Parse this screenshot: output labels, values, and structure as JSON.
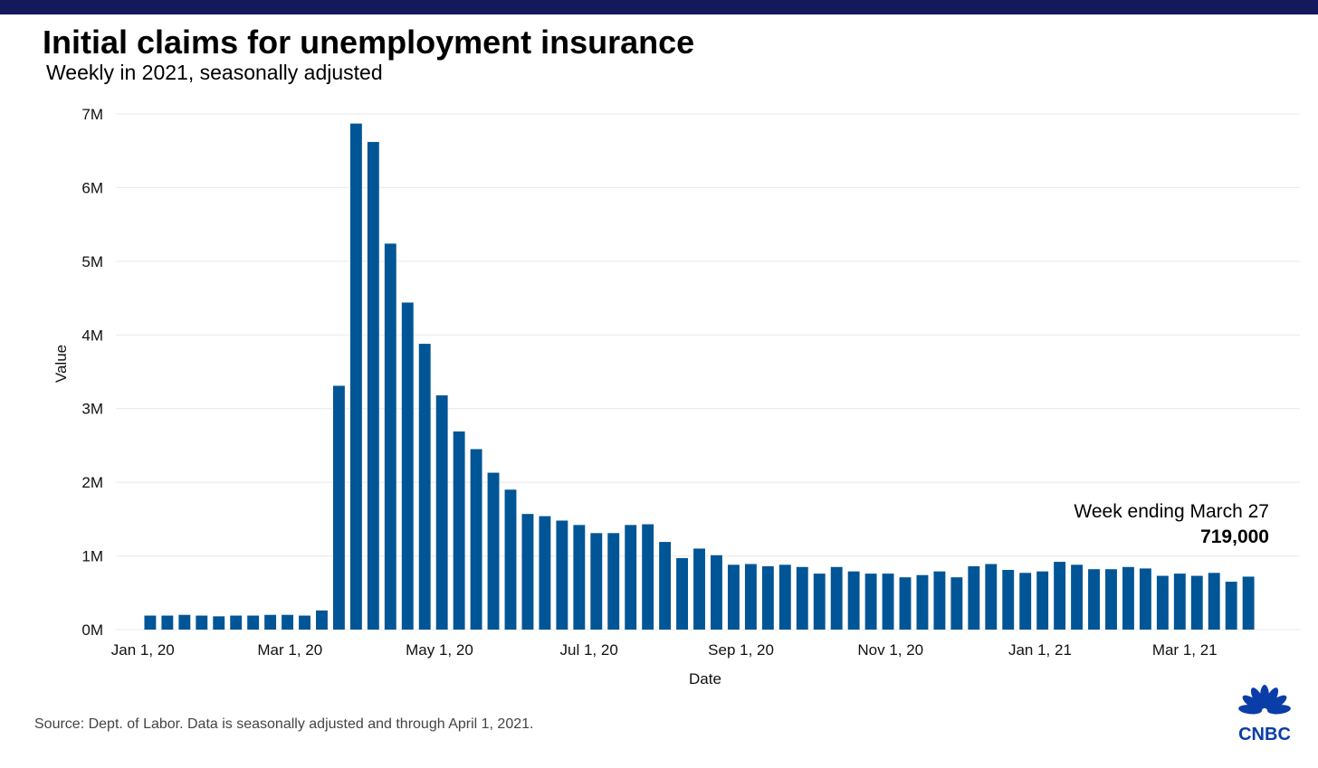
{
  "title": "Initial claims for unemployment insurance",
  "subtitle": "Weekly in 2021, seasonally adjusted",
  "source": "Source: Dept. of Labor. Data is seasonally adjusted and through April 1, 2021.",
  "logo": {
    "text": "CNBC",
    "icon": "peacock-icon",
    "color": "#0a3da8"
  },
  "colors": {
    "bar": "#005596",
    "topbar": "#13195c",
    "grid": "#e8e8e8"
  },
  "annotation": {
    "line1": "Week ending March 27",
    "line2": "719,000"
  },
  "chart_data": {
    "type": "bar",
    "xlabel": "Date",
    "ylabel": "Value",
    "ylim": [
      0,
      7000000
    ],
    "yticks": [
      0,
      1000000,
      2000000,
      3000000,
      4000000,
      5000000,
      6000000,
      7000000
    ],
    "ytick_labels": [
      "0M",
      "1M",
      "2M",
      "3M",
      "4M",
      "5M",
      "6M",
      "7M"
    ],
    "xlim": [
      "2019-12-21",
      "2021-04-17"
    ],
    "xticks": [
      {
        "date": "2020-01-01",
        "label": "Jan 1, 20"
      },
      {
        "date": "2020-03-01",
        "label": "Mar 1, 20"
      },
      {
        "date": "2020-05-01",
        "label": "May 1, 20"
      },
      {
        "date": "2020-07-01",
        "label": "Jul 1, 20"
      },
      {
        "date": "2020-09-01",
        "label": "Sep 1, 20"
      },
      {
        "date": "2020-11-01",
        "label": "Nov 1, 20"
      },
      {
        "date": "2021-01-01",
        "label": "Jan 1, 21"
      },
      {
        "date": "2021-03-01",
        "label": "Mar 1, 21"
      }
    ],
    "grid": true,
    "weeks": [
      "2020-01-04",
      "2020-01-11",
      "2020-01-18",
      "2020-01-25",
      "2020-02-01",
      "2020-02-08",
      "2020-02-15",
      "2020-02-22",
      "2020-02-29",
      "2020-03-07",
      "2020-03-14",
      "2020-03-21",
      "2020-03-28",
      "2020-04-04",
      "2020-04-11",
      "2020-04-18",
      "2020-04-25",
      "2020-05-02",
      "2020-05-09",
      "2020-05-16",
      "2020-05-23",
      "2020-05-30",
      "2020-06-06",
      "2020-06-13",
      "2020-06-20",
      "2020-06-27",
      "2020-07-04",
      "2020-07-11",
      "2020-07-18",
      "2020-07-25",
      "2020-08-01",
      "2020-08-08",
      "2020-08-15",
      "2020-08-22",
      "2020-08-29",
      "2020-09-05",
      "2020-09-12",
      "2020-09-19",
      "2020-09-26",
      "2020-10-03",
      "2020-10-10",
      "2020-10-17",
      "2020-10-24",
      "2020-10-31",
      "2020-11-07",
      "2020-11-14",
      "2020-11-21",
      "2020-11-28",
      "2020-12-05",
      "2020-12-12",
      "2020-12-19",
      "2020-12-26",
      "2021-01-02",
      "2021-01-09",
      "2021-01-16",
      "2021-01-23",
      "2021-01-30",
      "2021-02-06",
      "2021-02-13",
      "2021-02-20",
      "2021-02-27",
      "2021-03-06",
      "2021-03-13",
      "2021-03-20",
      "2021-03-27"
    ],
    "values": [
      190000,
      190000,
      200000,
      190000,
      180000,
      190000,
      190000,
      200000,
      200000,
      190000,
      260000,
      3310000,
      6870000,
      6620000,
      5240000,
      4440000,
      3880000,
      3180000,
      2690000,
      2450000,
      2130000,
      1900000,
      1570000,
      1540000,
      1480000,
      1420000,
      1310000,
      1310000,
      1420000,
      1430000,
      1190000,
      970000,
      1100000,
      1010000,
      880000,
      890000,
      860000,
      880000,
      850000,
      760000,
      850000,
      790000,
      760000,
      760000,
      710000,
      740000,
      790000,
      710000,
      860000,
      890000,
      810000,
      770000,
      790000,
      920000,
      880000,
      820000,
      820000,
      850000,
      830000,
      730000,
      760000,
      730000,
      770000,
      650000,
      719000
    ]
  }
}
